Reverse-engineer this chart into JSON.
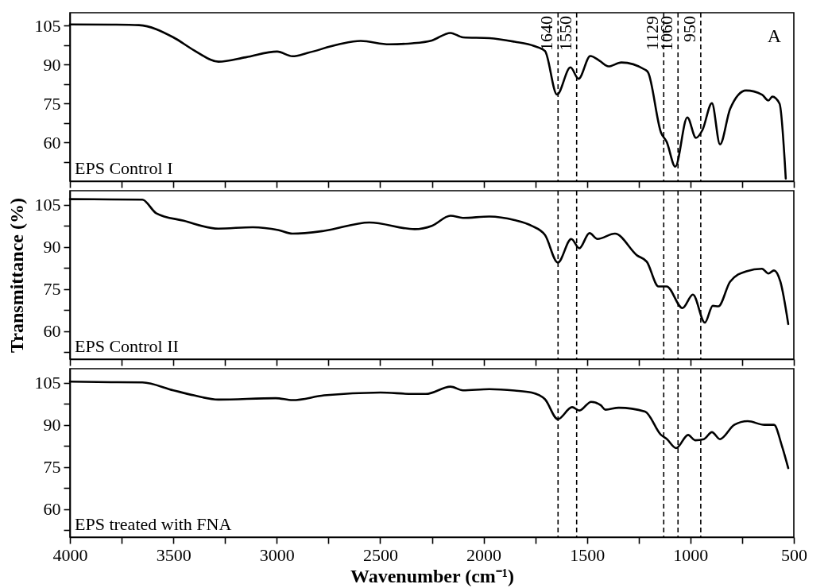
{
  "chart_data": [
    {
      "type": "line",
      "xlim": [
        4000,
        500
      ],
      "xticks": [
        4000,
        {
          "value": 3750,
          "label": null
        },
        3500,
        {
          "value": 3250,
          "label": null
        },
        3000,
        {
          "value": 2750,
          "label": null
        },
        2500,
        {
          "value": 2250,
          "label": null
        },
        2000,
        {
          "value": 1750,
          "label": null
        },
        1500,
        {
          "value": 1250,
          "label": null
        },
        1000,
        {
          "value": 750,
          "label": null
        },
        500
      ],
      "ylim": [
        45,
        110
      ],
      "yticks": [
        {
          "value": 52.5,
          "label": null
        },
        60,
        {
          "value": 67.5,
          "label": null
        },
        75,
        {
          "value": 82.5,
          "label": null
        },
        90,
        {
          "value": 97.5,
          "label": null
        },
        105
      ],
      "tick_labels": "y",
      "annotations": [
        "EPS Control I",
        "A"
      ],
      "series": [
        {
          "color": "#000000",
          "x": [
            4000,
            3800,
            3666,
            3500,
            3400,
            3282,
            3150,
            2998,
            2924,
            2850,
            2700,
            2594,
            2456,
            2344,
            2250,
            2160,
            2100,
            1972,
            1850,
            1757,
            1703,
            1645,
            1580,
            1541,
            1484,
            1440,
            1396,
            1334,
            1219,
            1205,
            1142,
            1115,
            1073,
            1015,
            973,
            942,
            896,
            857,
            808,
            731,
            654,
            623,
            604,
            569,
            539
          ],
          "values": [
            105.5,
            105.4,
            105.2,
            100.5,
            95.5,
            91.1,
            92.8,
            95,
            93.2,
            94.5,
            97.8,
            99.1,
            97.8,
            98.2,
            99.3,
            102.2,
            100.5,
            100.2,
            98.8,
            97.2,
            95.2,
            78.4,
            88.9,
            84.5,
            93.3,
            91.5,
            89.3,
            90.8,
            88,
            87,
            63.7,
            60.2,
            50.6,
            69.6,
            61.7,
            64.7,
            75.1,
            59.2,
            72.9,
            80,
            78.4,
            76.1,
            77.6,
            74.9,
            46
          ]
        }
      ],
      "ref_lines": [
        {
          "axis": "x",
          "value": 1640,
          "label": "1640",
          "line_style": "dashed"
        },
        {
          "axis": "x",
          "value": 1550,
          "label": "1550",
          "line_style": "dashed"
        },
        {
          "axis": "x",
          "value": 1129,
          "label": "1129",
          "line_style": "dashed"
        },
        {
          "axis": "x",
          "value": 1060,
          "label": "1060",
          "line_style": "dashed"
        },
        {
          "axis": "x",
          "value": 950,
          "label": "950",
          "line_style": "dashed"
        }
      ]
    },
    {
      "type": "line",
      "ylabel": "Transmittance (%)",
      "xlim": [
        4000,
        500
      ],
      "xticks": [
        4000,
        {
          "value": 3750,
          "label": null
        },
        3500,
        {
          "value": 3250,
          "label": null
        },
        3000,
        {
          "value": 2750,
          "label": null
        },
        2500,
        {
          "value": 2250,
          "label": null
        },
        2000,
        {
          "value": 1750,
          "label": null
        },
        1500,
        {
          "value": 1250,
          "label": null
        },
        1000,
        {
          "value": 750,
          "label": null
        },
        500
      ],
      "ylim": [
        50,
        110
      ],
      "yticks": [
        {
          "value": 52.5,
          "label": null
        },
        60,
        {
          "value": 67.5,
          "label": null
        },
        75,
        {
          "value": 82.5,
          "label": null
        },
        90,
        {
          "value": 97.5,
          "label": null
        },
        105
      ],
      "tick_labels": "y",
      "ref_lines": [
        {
          "axis": "x",
          "value": 1640,
          "line_style": "dashed"
        },
        {
          "axis": "x",
          "value": 1550,
          "line_style": "dashed"
        },
        {
          "axis": "x",
          "value": 1129,
          "line_style": "dashed"
        },
        {
          "axis": "x",
          "value": 1060,
          "line_style": "dashed"
        },
        {
          "axis": "x",
          "value": 950,
          "line_style": "dashed"
        }
      ],
      "annotations": [
        "EPS Control II"
      ],
      "series": [
        {
          "color": "#000000",
          "x": [
            4000,
            3800,
            3650,
            3583,
            3450,
            3282,
            3116,
            2993,
            2924,
            2771,
            2552,
            2333,
            2250,
            2160,
            2100,
            1972,
            1850,
            1768,
            1703,
            1641,
            1576,
            1537,
            1488,
            1449,
            1365,
            1257,
            1211,
            1154,
            1115,
            1038,
            988,
            930,
            892,
            865,
            808,
            730,
            654,
            623,
            596,
            565,
            527
          ],
          "values": [
            107,
            106.9,
            106.8,
            102,
            99.3,
            96.5,
            97,
            96,
            94.7,
            95.7,
            98.7,
            96.3,
            97.5,
            101.1,
            100.3,
            100.8,
            99.5,
            97.5,
            94.2,
            84.4,
            92.8,
            89.5,
            94.9,
            92.8,
            94.7,
            86.9,
            84.7,
            75.9,
            75.9,
            68.2,
            73,
            63,
            69,
            68.8,
            77.6,
            81.3,
            82.2,
            80.5,
            81.6,
            77.6,
            62.5
          ]
        }
      ]
    },
    {
      "type": "line",
      "xlabel": "Wavenumber (cm⁻¹)",
      "xlim": [
        4000,
        500
      ],
      "xticks": [
        4000,
        {
          "value": 3750,
          "label": null
        },
        3500,
        {
          "value": 3250,
          "label": null
        },
        3000,
        {
          "value": 2750,
          "label": null
        },
        2500,
        {
          "value": 2250,
          "label": null
        },
        2000,
        {
          "value": 1750,
          "label": null
        },
        1500,
        {
          "value": 1250,
          "label": null
        },
        1000,
        {
          "value": 750,
          "label": null
        },
        500
      ],
      "ylim": [
        50,
        110
      ],
      "yticks": [
        {
          "value": 52.5,
          "label": null
        },
        60,
        {
          "value": 67.5,
          "label": null
        },
        75,
        {
          "value": 82.5,
          "label": null
        },
        90,
        {
          "value": 97.5,
          "label": null
        },
        105
      ],
      "ref_lines": [
        {
          "axis": "x",
          "value": 1640,
          "line_style": "dashed"
        },
        {
          "axis": "x",
          "value": 1550,
          "line_style": "dashed"
        },
        {
          "axis": "x",
          "value": 1129,
          "line_style": "dashed"
        },
        {
          "axis": "x",
          "value": 1060,
          "line_style": "dashed"
        },
        {
          "axis": "x",
          "value": 950,
          "line_style": "dashed"
        }
      ],
      "annotations": [
        "EPS treated with FNA"
      ],
      "series": [
        {
          "color": "#000000",
          "x": [
            4000,
            3800,
            3650,
            3500,
            3400,
            3282,
            3005,
            2924,
            2771,
            2498,
            2344,
            2279,
            2160,
            2100,
            1972,
            1850,
            1768,
            1703,
            1641,
            1572,
            1537,
            1480,
            1434,
            1411,
            1346,
            1219,
            1142,
            1115,
            1069,
            1011,
            977,
            935,
            896,
            857,
            788,
            723,
            642,
            596,
            558,
            527
          ],
          "values": [
            105.4,
            105.2,
            105.1,
            102.3,
            100.5,
            99,
            99.5,
            98.8,
            100.5,
            101.5,
            101,
            101,
            103.6,
            102.3,
            102.7,
            102.2,
            101.5,
            99.1,
            92,
            96.3,
            95.1,
            98.2,
            97,
            95.4,
            96.1,
            94.7,
            86.4,
            85,
            81.7,
            86.4,
            84.5,
            84.9,
            87.4,
            84.9,
            90,
            91.3,
            90,
            90,
            82.6,
            74.6
          ]
        }
      ]
    }
  ]
}
